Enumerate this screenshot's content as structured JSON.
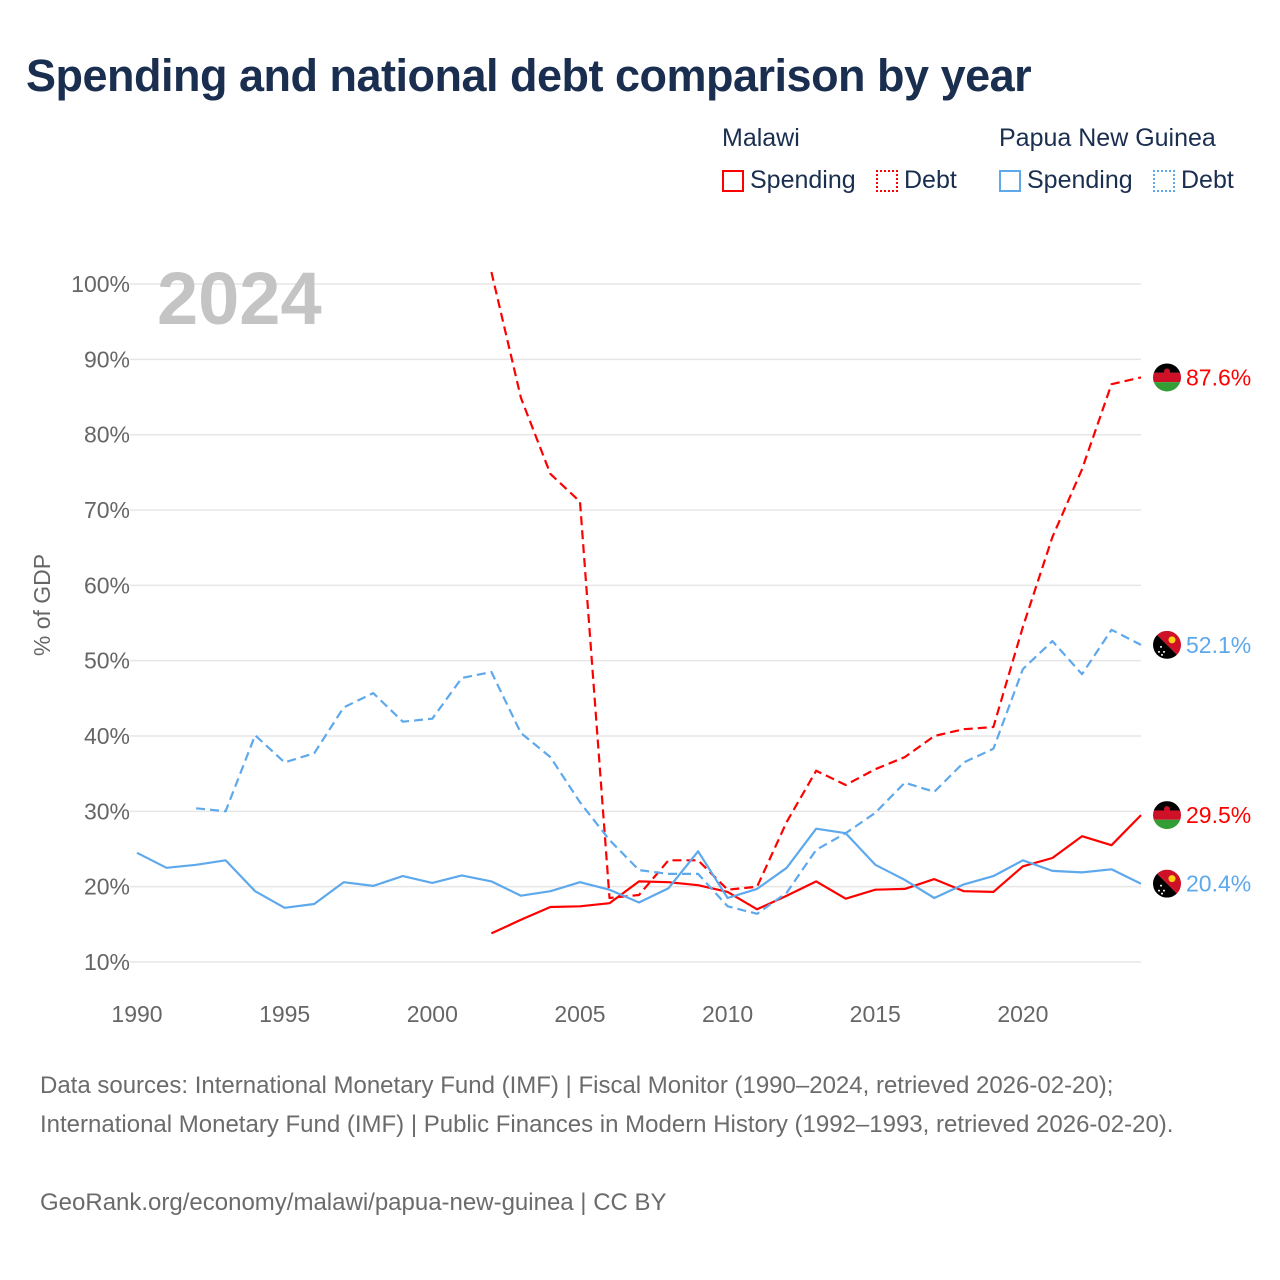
{
  "title": "Spending and national debt comparison by year",
  "legend": {
    "groups": [
      {
        "country": "Malawi",
        "items": [
          "Spending",
          "Debt"
        ]
      },
      {
        "country": "Papua New Guinea",
        "items": [
          "Spending",
          "Debt"
        ]
      }
    ]
  },
  "footer": {
    "sources": "Data sources: International Monetary Fund (IMF) | Fiscal Monitor (1990–2024, retrieved 2026-02-20); International Monetary Fund (IMF) | Public Finances in Modern History (1992–1993, retrieved 2026-02-20).",
    "credit": "GeoRank.org/economy/malawi/papua-new-guinea | CC BY"
  },
  "chart_data": {
    "type": "line",
    "title": "Spending and national debt comparison by year",
    "year_watermark": "2024",
    "ylabel": "% of GDP",
    "xlabel": "",
    "xlim": [
      1990,
      2024
    ],
    "ylim": [
      10,
      100
    ],
    "x_ticks": [
      1990,
      1995,
      2000,
      2005,
      2010,
      2015,
      2020
    ],
    "y_ticks": [
      10,
      20,
      30,
      40,
      50,
      60,
      70,
      80,
      90,
      100
    ],
    "y_tick_labels": [
      "10%",
      "20%",
      "30%",
      "40%",
      "50%",
      "60%",
      "70%",
      "80%",
      "90%",
      "100%"
    ],
    "grid": true,
    "legend_position": "top-right",
    "series": [
      {
        "name": "Malawi Spending",
        "color": "#ff0000",
        "dash": false,
        "start": 2002,
        "end_label": "29.5%",
        "values": [
          13.8,
          15.6,
          17.3,
          17.4,
          17.8,
          20.7,
          20.6,
          20.2,
          19.3,
          17.0,
          18.8,
          20.7,
          18.4,
          19.6,
          19.7,
          21.0,
          19.4,
          19.3,
          22.7,
          23.8,
          26.7,
          25.5,
          29.5
        ]
      },
      {
        "name": "Malawi Debt",
        "color": "#ff0000",
        "dash": true,
        "start": 2002,
        "end_label": "87.6%",
        "values": [
          101.6,
          84.9,
          74.8,
          71.1,
          18.5,
          18.9,
          23.5,
          23.5,
          19.6,
          20.0,
          28.6,
          35.4,
          33.5,
          35.6,
          37.2,
          40.0,
          40.9,
          41.2,
          54.5,
          66.4,
          75.4,
          86.7,
          87.6
        ]
      },
      {
        "name": "Papua New Guinea Spending",
        "color": "#5ea8ec",
        "dash": false,
        "start": 1990,
        "end_label": "20.4%",
        "values": [
          24.5,
          22.5,
          22.9,
          23.5,
          19.4,
          17.2,
          17.7,
          20.6,
          20.1,
          21.4,
          20.5,
          21.5,
          20.7,
          18.8,
          19.4,
          20.6,
          19.6,
          17.9,
          19.8,
          24.7,
          18.5,
          19.7,
          22.5,
          27.7,
          27.1,
          22.9,
          20.9,
          18.5,
          20.3,
          21.4,
          23.5,
          22.1,
          21.9,
          22.3,
          20.4
        ]
      },
      {
        "name": "Papua New Guinea Debt",
        "color": "#5ea8ec",
        "dash": true,
        "start": 1992,
        "end_label": "52.1%",
        "values": [
          30.4,
          30.0,
          40.1,
          36.5,
          37.7,
          43.8,
          45.7,
          41.9,
          42.3,
          47.7,
          48.5,
          40.4,
          37.2,
          31.2,
          26.2,
          22.2,
          21.7,
          21.7,
          17.4,
          16.4,
          19.2,
          24.9,
          27.1,
          29.8,
          33.8,
          32.6,
          36.5,
          38.3,
          48.9,
          52.6,
          48.2,
          54.1,
          52.1
        ]
      }
    ]
  }
}
